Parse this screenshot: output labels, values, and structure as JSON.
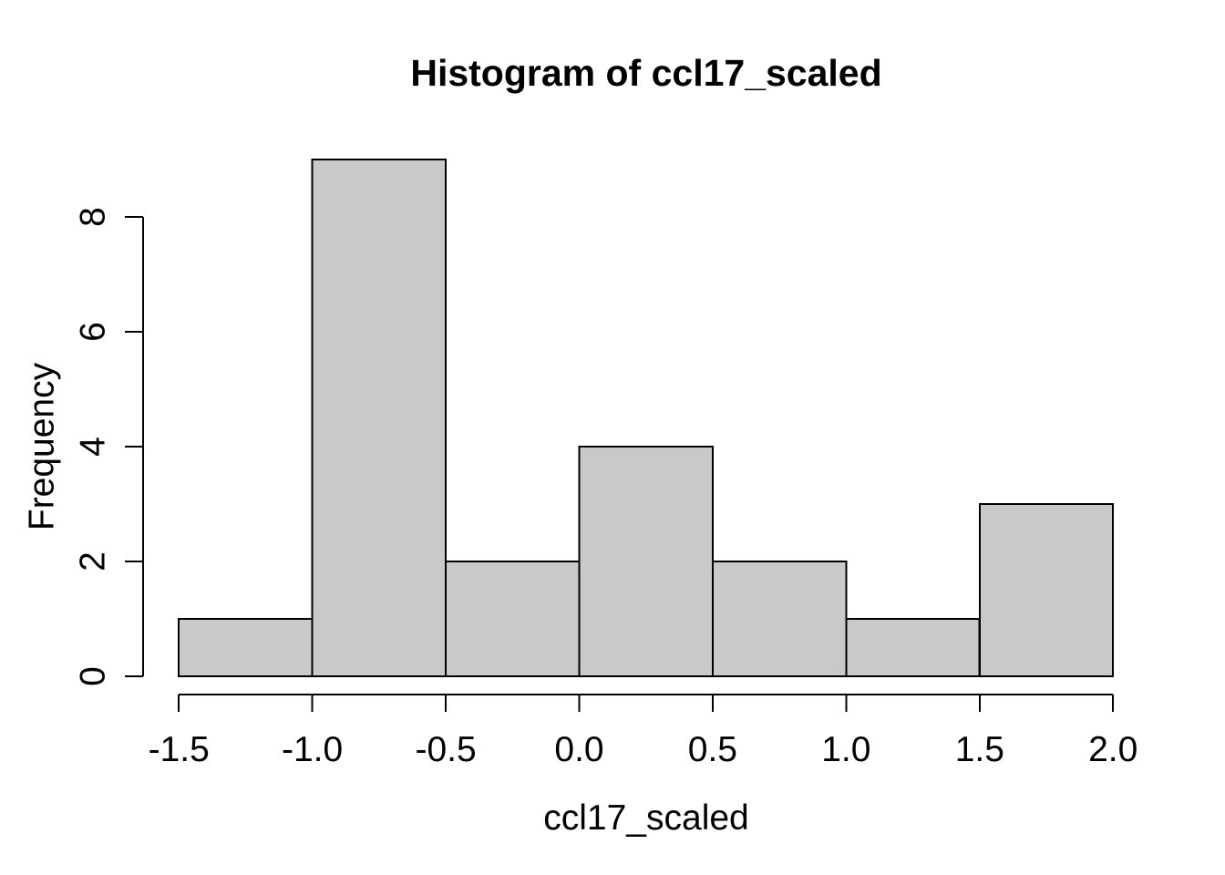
{
  "chart": {
    "title": "Histogram of ccl17_scaled",
    "xlabel": "ccl17_scaled",
    "ylabel": "Frequency"
  },
  "chart_data": {
    "type": "bar",
    "subtype": "histogram",
    "title": "Histogram of ccl17_scaled",
    "xlabel": "ccl17_scaled",
    "ylabel": "Frequency",
    "breaks": [
      -1.5,
      -1.0,
      -0.5,
      0.0,
      0.5,
      1.0,
      1.5,
      2.0
    ],
    "counts": [
      1,
      9,
      2,
      4,
      2,
      1,
      3
    ],
    "xlim": [
      -1.5,
      2.0
    ],
    "ylim": [
      0,
      8
    ],
    "x_ticks": [
      -1.5,
      -1.0,
      -0.5,
      0.0,
      0.5,
      1.0,
      1.5,
      2.0
    ],
    "x_tick_labels": [
      "-1.5",
      "-1.0",
      "-0.5",
      "0.0",
      "0.5",
      "1.0",
      "1.5",
      "2.0"
    ],
    "y_ticks": [
      0,
      2,
      4,
      6,
      8
    ],
    "y_tick_labels": [
      "0",
      "2",
      "4",
      "6",
      "8"
    ],
    "grid": false,
    "legend": false,
    "bar_fill": "#C9C9C9",
    "bar_stroke": "#000000",
    "axis_color": "#000000",
    "background": "#FFFFFF"
  }
}
